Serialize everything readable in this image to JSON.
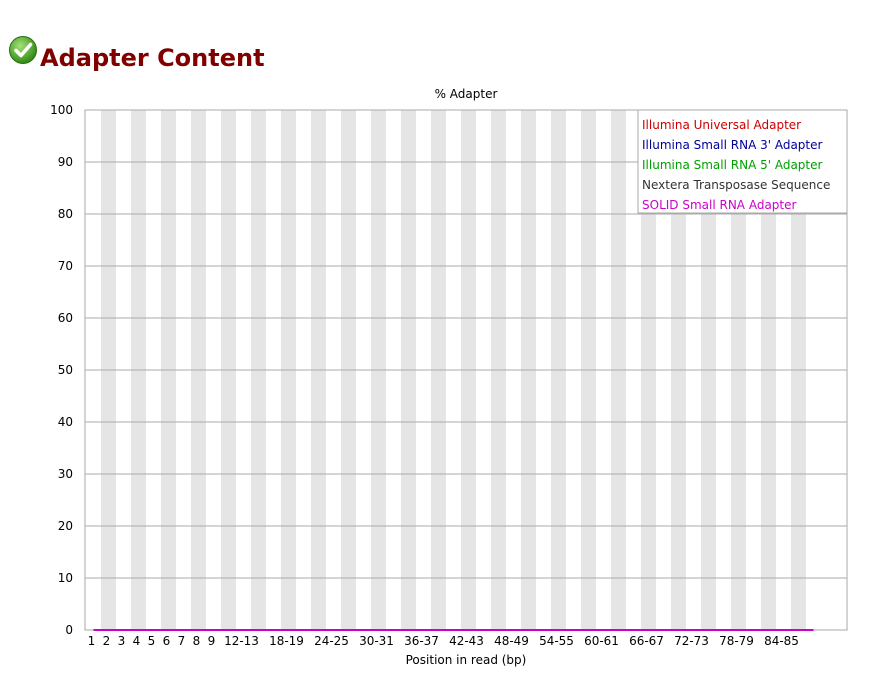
{
  "header": {
    "title": "Adapter Content",
    "status_icon": "pass-check-icon"
  },
  "chart_data": {
    "type": "line",
    "title": "% Adapter",
    "xlabel": "Position in read (bp)",
    "ylabel": "",
    "ylim": [
      0,
      100
    ],
    "yticks": [
      "0",
      "10",
      "20",
      "30",
      "40",
      "50",
      "60",
      "70",
      "80",
      "90",
      "100"
    ],
    "categories": [
      "1",
      "2",
      "3",
      "4",
      "5",
      "6",
      "7",
      "8",
      "9",
      "10-11",
      "12-13",
      "14-15",
      "16-17",
      "18-19",
      "20-21",
      "22-23",
      "24-25",
      "26-27",
      "28-29",
      "30-31",
      "32-33",
      "34-35",
      "36-37",
      "38-39",
      "40-41",
      "42-43",
      "44-45",
      "46-47",
      "48-49",
      "50-51",
      "52-53",
      "54-55",
      "56-57",
      "58-59",
      "60-61",
      "62-63",
      "64-65",
      "66-67",
      "68-69",
      "70-71",
      "72-73",
      "74-75",
      "76-77",
      "78-79",
      "80-81",
      "82-83",
      "84-85",
      "86-87",
      "88-89"
    ],
    "shown_tick_labels": [
      "1",
      "2",
      "3",
      "4",
      "5",
      "6",
      "7",
      "8",
      "9",
      "12-13",
      "18-19",
      "24-25",
      "30-31",
      "36-37",
      "42-43",
      "48-49",
      "54-55",
      "60-61",
      "66-67",
      "72-73",
      "78-79",
      "84-85"
    ],
    "legend_position": "top-right",
    "series": [
      {
        "name": "Illumina Universal Adapter",
        "color": "#cc0000",
        "values": [
          0,
          0,
          0,
          0,
          0,
          0,
          0,
          0,
          0,
          0,
          0,
          0,
          0,
          0,
          0,
          0,
          0,
          0,
          0,
          0,
          0,
          0,
          0,
          0,
          0,
          0,
          0,
          0,
          0,
          0,
          0,
          0,
          0,
          0,
          0,
          0,
          0,
          0,
          0,
          0,
          0,
          0,
          0,
          0,
          0,
          0,
          0,
          0,
          0
        ]
      },
      {
        "name": "Illumina Small RNA 3' Adapter",
        "color": "#000099",
        "values": [
          0,
          0,
          0,
          0,
          0,
          0,
          0,
          0,
          0,
          0,
          0,
          0,
          0,
          0,
          0,
          0,
          0,
          0,
          0,
          0,
          0,
          0,
          0,
          0,
          0,
          0,
          0,
          0,
          0,
          0,
          0,
          0,
          0,
          0,
          0,
          0,
          0,
          0,
          0,
          0,
          0,
          0,
          0,
          0,
          0,
          0,
          0,
          0,
          0
        ]
      },
      {
        "name": "Illumina Small RNA 5' Adapter",
        "color": "#00a000",
        "values": [
          0,
          0,
          0,
          0,
          0,
          0,
          0,
          0,
          0,
          0,
          0,
          0,
          0,
          0,
          0,
          0,
          0,
          0,
          0,
          0,
          0,
          0,
          0,
          0,
          0,
          0,
          0,
          0,
          0,
          0,
          0,
          0,
          0,
          0,
          0,
          0,
          0,
          0,
          0,
          0,
          0,
          0,
          0,
          0,
          0,
          0,
          0,
          0,
          0
        ]
      },
      {
        "name": "Nextera Transposase Sequence",
        "color": "#333333",
        "values": [
          0,
          0,
          0,
          0,
          0,
          0,
          0,
          0,
          0,
          0,
          0,
          0,
          0,
          0,
          0,
          0,
          0,
          0,
          0,
          0,
          0,
          0,
          0,
          0,
          0,
          0,
          0,
          0,
          0,
          0,
          0,
          0,
          0,
          0,
          0,
          0,
          0,
          0,
          0,
          0,
          0,
          0,
          0,
          0,
          0,
          0,
          0,
          0,
          0
        ]
      },
      {
        "name": "SOLID Small RNA Adapter",
        "color": "#cc00cc",
        "values": [
          0,
          0,
          0,
          0,
          0,
          0,
          0,
          0,
          0,
          0,
          0,
          0,
          0,
          0,
          0,
          0,
          0,
          0,
          0,
          0,
          0,
          0,
          0,
          0,
          0,
          0,
          0,
          0,
          0,
          0,
          0,
          0,
          0,
          0,
          0,
          0,
          0,
          0,
          0,
          0,
          0,
          0,
          0,
          0,
          0,
          0,
          0,
          0,
          0
        ]
      }
    ]
  }
}
